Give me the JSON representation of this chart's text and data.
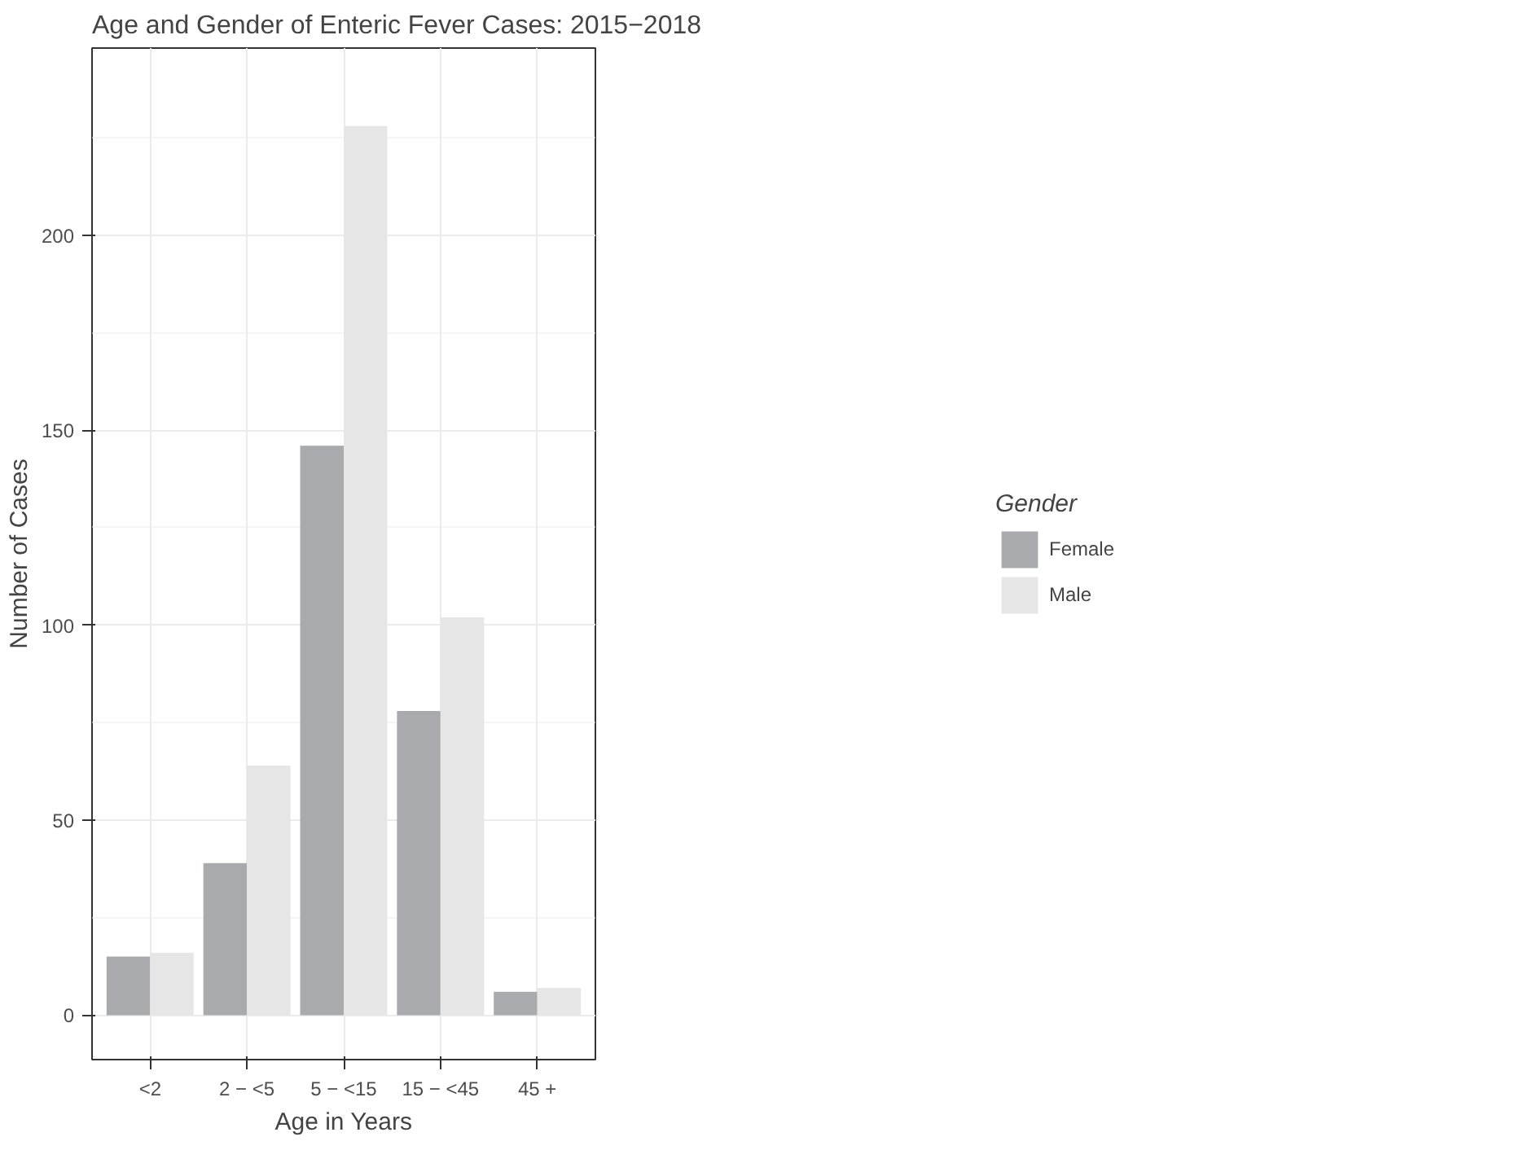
{
  "chart_data": {
    "type": "bar",
    "title": "Age and Gender of Enteric Fever Cases: 2015−2018",
    "xlabel": "Age in Years",
    "ylabel": "Number of Cases",
    "legend_title": "Gender",
    "categories": [
      "<2",
      "2 − <5",
      "5 − <15",
      "15 − <45",
      "45 +"
    ],
    "series": [
      {
        "name": "Female",
        "color": "#a9aaad",
        "values": [
          15,
          39,
          146,
          78,
          6
        ]
      },
      {
        "name": "Male",
        "color": "#e5e6e5",
        "values": [
          16,
          64,
          228,
          102,
          7
        ]
      }
    ],
    "ylim": [
      -11.4,
      248
    ],
    "yticks": [
      0,
      50,
      100,
      150,
      200
    ],
    "grid": true,
    "legend": "right"
  }
}
